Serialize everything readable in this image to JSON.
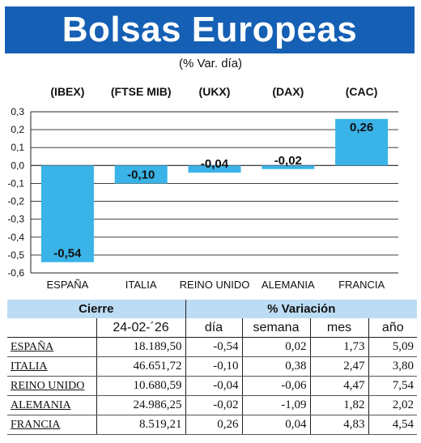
{
  "header": {
    "title": "Bolsas Europeas",
    "subtitle": "(% Var. día)"
  },
  "chart_data": {
    "type": "bar",
    "categories": [
      "ESPAÑA",
      "ITALIA",
      "REINO UNIDO",
      "ALEMANIA",
      "FRANCIA"
    ],
    "index_labels": [
      "(IBEX)",
      "(FTSE MIB)",
      "(UKX)",
      "(DAX)",
      "(CAC)"
    ],
    "values": [
      -0.54,
      -0.1,
      -0.04,
      -0.02,
      0.26
    ],
    "data_labels": [
      "-0,54",
      "-0,10",
      "-0,04",
      "-0,02",
      "0,26"
    ],
    "ylim": [
      -0.6,
      0.3
    ],
    "yticks": [
      0.3,
      0.2,
      0.1,
      0.0,
      -0.1,
      -0.2,
      -0.3,
      -0.4,
      -0.5,
      -0.6
    ],
    "ytick_labels": [
      "0,3",
      "0,2",
      "0,1",
      "0,0",
      "-0,1",
      "-0,2",
      "-0,3",
      "-0,4",
      "-0,5",
      "-0,6"
    ],
    "grid": true,
    "bar_color": "#39b3e8",
    "title": "",
    "xlabel": "",
    "ylabel": ""
  },
  "table": {
    "group_headers": {
      "cierre": "Cierre",
      "variacion": "% Variación"
    },
    "columns": {
      "date": "24-02-´26",
      "dia": "día",
      "semana": "semana",
      "mes": "mes",
      "ano": "año"
    },
    "rows": [
      {
        "name": "ESPAÑA",
        "cierre": "18.189,50",
        "dia": "-0,54",
        "semana": "0,02",
        "mes": "1,73",
        "ano": "5,09"
      },
      {
        "name": "ITALIA",
        "cierre": "46.651,72",
        "dia": "-0,10",
        "semana": "0,38",
        "mes": "2,47",
        "ano": "3,80"
      },
      {
        "name": "REINO UNIDO",
        "cierre": "10.680,59",
        "dia": "-0,04",
        "semana": "-0,06",
        "mes": "4,47",
        "ano": "7,54"
      },
      {
        "name": "ALEMANIA",
        "cierre": "24.986,25",
        "dia": "-0,02",
        "semana": "-1,09",
        "mes": "1,82",
        "ano": "2,02"
      },
      {
        "name": "FRANCIA",
        "cierre": "8.519,21",
        "dia": "0,26",
        "semana": "0,04",
        "mes": "4,83",
        "ano": "4,54"
      }
    ]
  },
  "colors": {
    "banner": "#1560b4",
    "bar": "#39b3e8",
    "table_header": "#bcdcf4"
  }
}
